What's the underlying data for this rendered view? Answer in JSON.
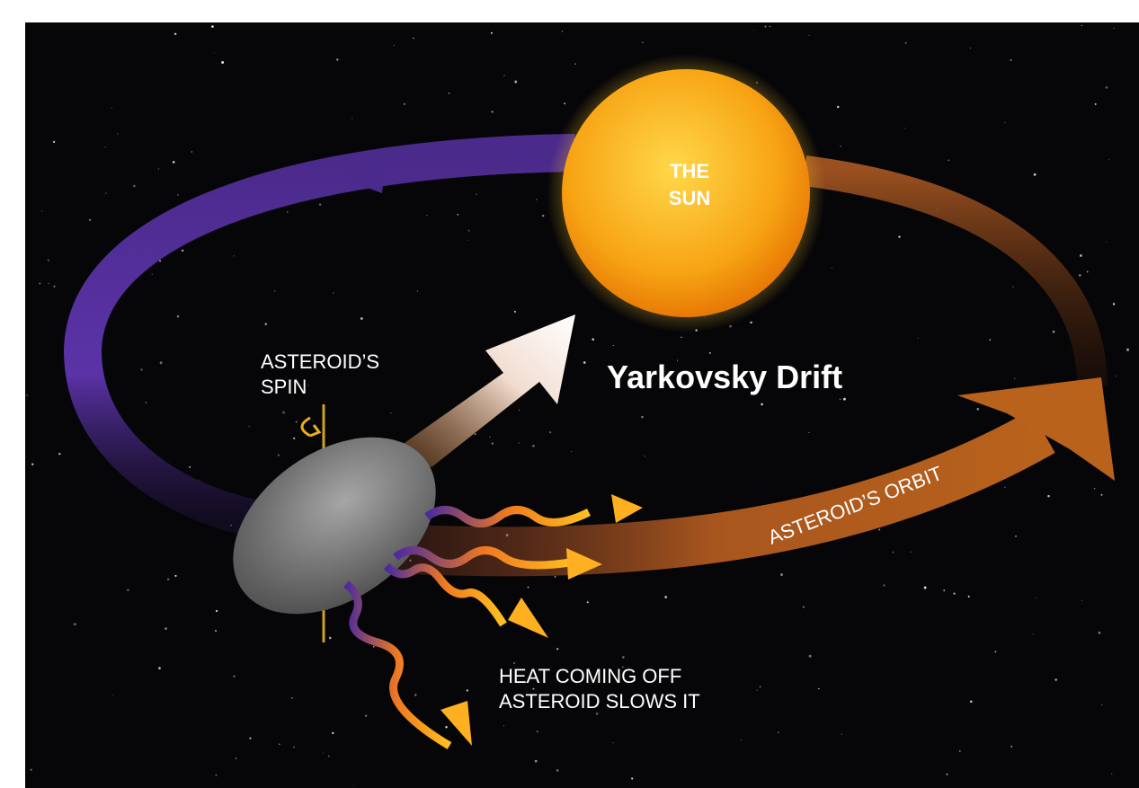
{
  "labels": {
    "sun": [
      "THE",
      "SUN"
    ],
    "title": "Yarkovsky Drift",
    "spin": [
      "ASTEROID’S",
      "SPIN"
    ],
    "orbit": "ASTEROID’S ORBIT",
    "heat": [
      "HEAT COMING OFF",
      "ASTEROID SLOWS IT"
    ]
  }
}
